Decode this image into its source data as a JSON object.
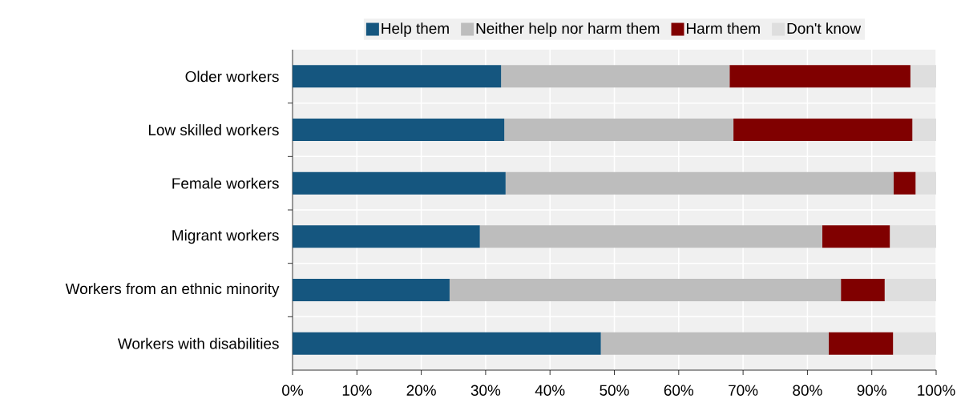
{
  "chart_data": {
    "type": "bar",
    "orientation": "horizontal",
    "stacked": true,
    "categories": [
      "Older workers",
      "Low skilled workers",
      "Female workers",
      "Migrant workers",
      "Workers from an ethnic minority",
      "Workers with disabilities"
    ],
    "series": [
      {
        "name": "Help them",
        "color": "#15567f",
        "values": [
          32.4,
          32.9,
          33.1,
          29.1,
          24.4,
          47.9
        ]
      },
      {
        "name": "Neither help nor harm them",
        "color": "#bdbdbd",
        "values": [
          35.5,
          35.6,
          60.3,
          53.2,
          60.8,
          35.4
        ]
      },
      {
        "name": "Harm them",
        "color": "#800000",
        "values": [
          28.1,
          27.8,
          3.4,
          10.5,
          6.8,
          10.0
        ]
      },
      {
        "name": "Don't know",
        "color": "#dedede",
        "values": [
          4.0,
          3.7,
          3.2,
          7.2,
          8.0,
          6.7
        ]
      }
    ],
    "xlim": [
      0,
      100
    ],
    "xticks": [
      {
        "value": 0,
        "label": "0%"
      },
      {
        "value": 10,
        "label": "10%"
      },
      {
        "value": 20,
        "label": "20%"
      },
      {
        "value": 30,
        "label": "30%"
      },
      {
        "value": 40,
        "label": "40%"
      },
      {
        "value": 50,
        "label": "50%"
      },
      {
        "value": 60,
        "label": "60%"
      },
      {
        "value": 70,
        "label": "70%"
      },
      {
        "value": 80,
        "label": "80%"
      },
      {
        "value": 90,
        "label": "90%"
      },
      {
        "value": 100,
        "label": "100%"
      }
    ],
    "grid": true,
    "legend": "top"
  }
}
